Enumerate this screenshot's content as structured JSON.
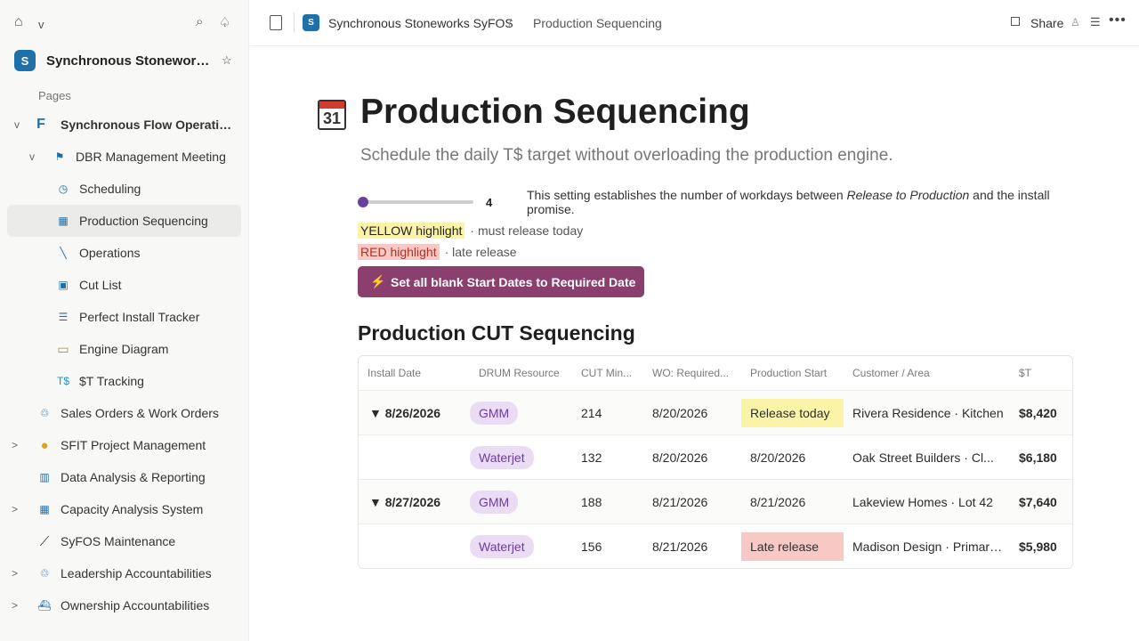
{
  "sidebar": {
    "workspace_name": "Synchronous Stoneworks SyFOS",
    "workspace_logo": "S",
    "pages_label": "Pages",
    "items": [
      {
        "label": "Synchronous Flow Operations",
        "toggle": "v",
        "icon": "F"
      },
      {
        "label": "DBR Management Meeting",
        "toggle": "v",
        "icon": "flag"
      },
      {
        "label": "Scheduling",
        "icon": "clock"
      },
      {
        "label": "Production Sequencing",
        "icon": "table"
      },
      {
        "label": "Operations",
        "icon": "wrench"
      },
      {
        "label": "Cut List",
        "icon": "square"
      },
      {
        "label": "Perfect Install Tracker",
        "icon": "list"
      },
      {
        "label": "Engine Diagram",
        "icon": "bus"
      },
      {
        "label": "$T Tracking",
        "icon": "T$"
      },
      {
        "label": "Sales Orders & Work Orders",
        "icon": "recycle"
      },
      {
        "label": "SFIT Project Management",
        "toggle": ">",
        "icon": "bulb"
      },
      {
        "label": "Data Analysis & Reporting",
        "icon": "grid"
      },
      {
        "label": "Capacity Analysis System",
        "toggle": ">",
        "icon": "grid"
      },
      {
        "label": "SyFOS Maintenance",
        "icon": "wrench"
      },
      {
        "label": "Leadership Accountabilities",
        "toggle": ">",
        "icon": "recycle"
      },
      {
        "label": "Ownership Accountabilities",
        "toggle": ">",
        "icon": "boat"
      }
    ]
  },
  "topbar": {
    "crumb_workspace": "Synchronous Stoneworks SyFOS",
    "crumb_sep": "/",
    "crumb_page": "Production Sequencing",
    "share": "Share"
  },
  "page": {
    "emoji_number": "31",
    "title": "Production Sequencing",
    "subtitle": "Schedule the daily T$ target without overloading the production engine.",
    "slider_value": "4",
    "slider_fraction": 0.0,
    "setting_desc_pre": "This setting establishes the number of workdays between ",
    "setting_desc_em": "Release to Production",
    "setting_desc_post": " and the install promise.",
    "yellow_tag": "YELLOW highlight",
    "yellow_note": "· must release today",
    "red_tag": "RED highlight",
    "red_note": "· late release",
    "button_label": "Set all blank Start Dates to Required Date",
    "section_title": "Production CUT Sequencing"
  },
  "table": {
    "headers": [
      "Install Date",
      "DRUM Resource",
      "CUT Min...",
      "WO: Required...",
      "Production Start",
      "Customer / Area",
      "$T"
    ],
    "rows": [
      {
        "install": "▼ 8/26/2026",
        "drum": "GMM",
        "cut": "214",
        "wo": "8/20/2026",
        "start": "Release today",
        "start_status": "yellow",
        "customer": "Rivera Residence · Kitchen",
        "t": "$8,420"
      },
      {
        "install": "",
        "drum": "Waterjet",
        "cut": "132",
        "wo": "8/20/2026",
        "start": "8/20/2026",
        "start_status": "",
        "customer": "Oak Street Builders · Cl...",
        "t": "$6,180"
      },
      {
        "install": "▼ 8/27/2026",
        "drum": "GMM",
        "cut": "188",
        "wo": "8/21/2026",
        "start": "8/21/2026",
        "start_status": "",
        "customer": "Lakeview Homes · Lot 42",
        "t": "$7,640"
      },
      {
        "install": "",
        "drum": "Waterjet",
        "cut": "156",
        "wo": "8/21/2026",
        "start": "Late release",
        "start_status": "red",
        "customer": "Madison Design · Primary Bath",
        "t": "$5,980"
      }
    ]
  }
}
